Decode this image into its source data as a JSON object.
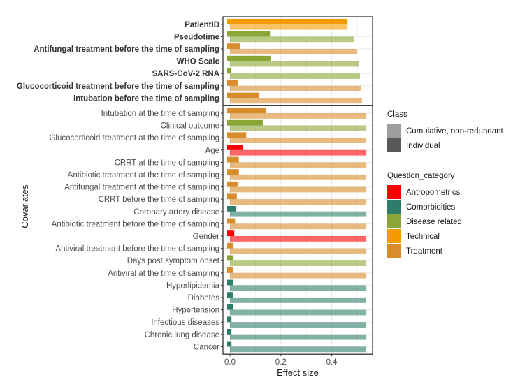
{
  "chart_data": {
    "type": "bar",
    "orientation": "horizontal",
    "title": "",
    "xlabel": "Effect size",
    "ylabel": "Covariates",
    "xlim": [
      -0.03,
      0.565
    ],
    "xticks": [
      0.0,
      0.2,
      0.4
    ],
    "xtick_labels": [
      "0.0",
      "0.2",
      "0.4"
    ],
    "grid": true,
    "colors": {
      "Antropometrics": "#ff0000",
      "Comorbidities": "#2e7d6b",
      "Disease related": "#8aa637",
      "Technical": "#f59b00",
      "Treatment": "#d98c2b"
    },
    "panels": [
      {
        "name": "upper",
        "bold_labels": true,
        "rows": [
          {
            "label": "PatientID",
            "category": "Technical",
            "individual": 0.462,
            "cumulative": 0.462
          },
          {
            "label": "Pseudotime",
            "category": "Disease related",
            "individual": 0.16,
            "cumulative": 0.486
          },
          {
            "label": "Antifungal treatment before the time of sampling",
            "category": "Treatment",
            "individual": 0.04,
            "cumulative": 0.5
          },
          {
            "label": "WHO Scale",
            "category": "Disease related",
            "individual": 0.162,
            "cumulative": 0.506
          },
          {
            "label": "SARS-CoV-2 RNA",
            "category": "Disease related",
            "individual": 0.003,
            "cumulative": 0.511
          },
          {
            "label": "Glucocorticoid treatment before the time of sampling",
            "category": "Treatment",
            "individual": 0.03,
            "cumulative": 0.516
          },
          {
            "label": "Intubation before the time of sampling",
            "category": "Treatment",
            "individual": 0.115,
            "cumulative": 0.519
          }
        ]
      },
      {
        "name": "lower",
        "bold_labels": false,
        "rows": [
          {
            "label": "Intubation at the time of sampling",
            "category": "Treatment",
            "individual": 0.14,
            "cumulative": 0.536
          },
          {
            "label": "Clinical outcome",
            "category": "Disease related",
            "individual": 0.129,
            "cumulative": 0.536
          },
          {
            "label": "Glucocorticoid treatment at the time of sampling",
            "category": "Treatment",
            "individual": 0.064,
            "cumulative": 0.536
          },
          {
            "label": "Age",
            "category": "Antropometrics",
            "individual": 0.052,
            "cumulative": 0.536
          },
          {
            "label": "CRRT at the time of sampling",
            "category": "Treatment",
            "individual": 0.035,
            "cumulative": 0.536
          },
          {
            "label": "Antibiotic treatment at the time of sampling",
            "category": "Treatment",
            "individual": 0.035,
            "cumulative": 0.536
          },
          {
            "label": "Antifungal treatment at the time of sampling",
            "category": "Treatment",
            "individual": 0.03,
            "cumulative": 0.536
          },
          {
            "label": "CRRT before the time of sampling",
            "category": "Treatment",
            "individual": 0.027,
            "cumulative": 0.536
          },
          {
            "label": "Coronary artery disease",
            "category": "Comorbidities",
            "individual": 0.025,
            "cumulative": 0.536
          },
          {
            "label": "Antibiotic treatment before the time of sampling",
            "category": "Treatment",
            "individual": 0.02,
            "cumulative": 0.536
          },
          {
            "label": "Gender",
            "category": "Antropometrics",
            "individual": 0.017,
            "cumulative": 0.536
          },
          {
            "label": "Antiviral treatment before the time of sampling",
            "category": "Treatment",
            "individual": 0.014,
            "cumulative": 0.536
          },
          {
            "label": "Days post symptom onset",
            "category": "Disease related",
            "individual": 0.014,
            "cumulative": 0.536
          },
          {
            "label": "Antiviral at the time of sampling",
            "category": "Treatment",
            "individual": 0.011,
            "cumulative": 0.536
          },
          {
            "label": "Hyperlipidemia",
            "category": "Comorbidities",
            "individual": 0.011,
            "cumulative": 0.536
          },
          {
            "label": "Diabetes",
            "category": "Comorbidities",
            "individual": 0.011,
            "cumulative": 0.536
          },
          {
            "label": "Hypertension",
            "category": "Comorbidities",
            "individual": 0.011,
            "cumulative": 0.536
          },
          {
            "label": "Infectious diseases",
            "category": "Comorbidities",
            "individual": 0.006,
            "cumulative": 0.536
          },
          {
            "label": "Chronic lung disease",
            "category": "Comorbidities",
            "individual": 0.006,
            "cumulative": 0.536
          },
          {
            "label": "Cancer",
            "category": "Comorbidities",
            "individual": 0.006,
            "cumulative": 0.536
          }
        ]
      }
    ],
    "legend": {
      "placement": "right",
      "groups": [
        {
          "title": "Class",
          "entries": [
            {
              "label": "Cumulative, non-redundant",
              "color": "#9e9e9e"
            },
            {
              "label": "Individual",
              "color": "#595959"
            }
          ]
        },
        {
          "title": "Question_category",
          "entries": [
            {
              "label": "Antropometrics",
              "color": "#ff0000"
            },
            {
              "label": "Comorbidities",
              "color": "#2e7d6b"
            },
            {
              "label": "Disease related",
              "color": "#8aa637"
            },
            {
              "label": "Technical",
              "color": "#f59b00"
            },
            {
              "label": "Treatment",
              "color": "#d98c2b"
            }
          ]
        }
      ]
    }
  }
}
